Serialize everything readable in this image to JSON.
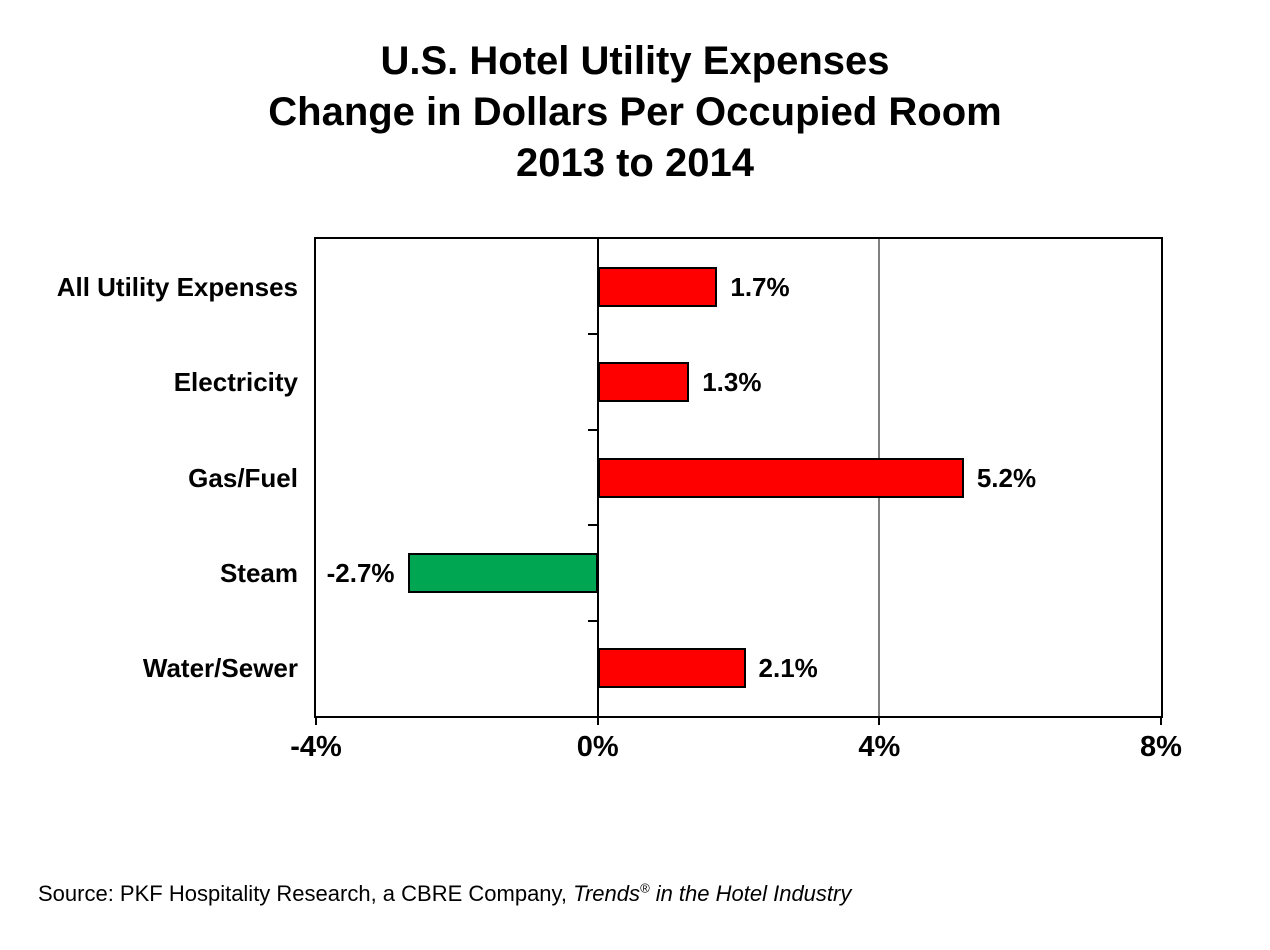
{
  "title": {
    "line1": "U.S. Hotel Utility Expenses",
    "line2": "Change in Dollars Per Occupied Room",
    "line3": "2013 to 2014"
  },
  "source": {
    "prefix": "Source: PKF Hospitality Research, a CBRE Company, ",
    "italic_work": "Trends",
    "trademark": "®",
    "italic_rest": " in the Hotel Industry"
  },
  "chart_data": {
    "type": "bar",
    "orientation": "horizontal",
    "title": "U.S. Hotel Utility Expenses — Change in Dollars Per Occupied Room — 2013 to 2014",
    "categories": [
      "All Utility Expenses",
      "Electricity",
      "Gas/Fuel",
      "Steam",
      "Water/Sewer"
    ],
    "values": [
      1.7,
      1.3,
      5.2,
      -2.7,
      2.1
    ],
    "value_labels": [
      "1.7%",
      "1.3%",
      "5.2%",
      "-2.7%",
      "2.1%"
    ],
    "xlim": [
      -4,
      8
    ],
    "x_ticks": [
      -4,
      0,
      4,
      8
    ],
    "x_tick_labels": [
      "-4%",
      "0%",
      "4%",
      "8%"
    ],
    "interior_gridlines": [
      4
    ],
    "legend": "none",
    "colors": {
      "positive_bar": "#FF0000",
      "negative_bar": "#00A651",
      "bar_border": "#000000",
      "gridline": "#808080",
      "axis": "#000000",
      "text": "#000000",
      "background": "#FFFFFF"
    }
  }
}
